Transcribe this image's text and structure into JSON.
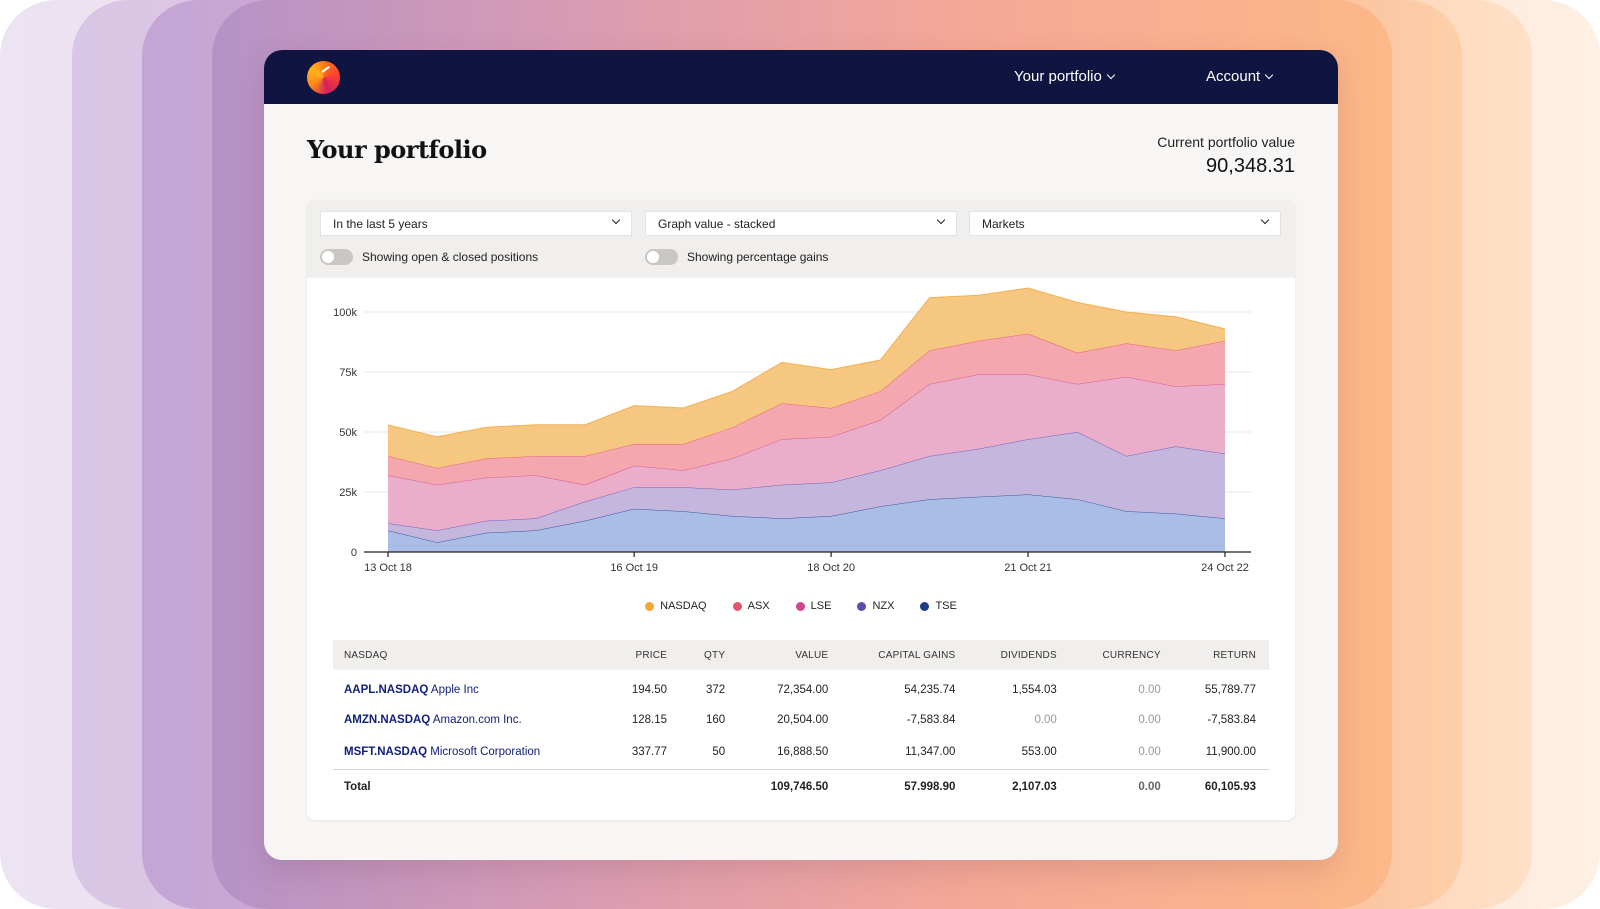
{
  "nav": {
    "portfolio_label": "Your portfolio",
    "account_label": "Account"
  },
  "page": {
    "title": "Your portfolio",
    "value_label": "Current portfolio value",
    "value": "90,348.31"
  },
  "filters": {
    "period": "In the last 5 years",
    "graph_mode": "Graph value - stacked",
    "grouping": "Markets",
    "toggle_positions_label": "Showing open & closed positions",
    "toggle_gains_label": "Showing percentage gains",
    "toggle_positions_on": false,
    "toggle_gains_on": false
  },
  "chart_data": {
    "type": "area",
    "stacked": true,
    "x": [
      "13 Oct 18",
      "",
      "",
      "",
      "",
      "16 Oct 19",
      "",
      "",
      "",
      "18 Oct 20",
      "",
      "",
      "",
      "21 Oct 21",
      "",
      "",
      "",
      "24 Oct 22"
    ],
    "x_tick_labels": [
      "13 Oct 18",
      "16 Oct 19",
      "18 Oct 20",
      "21 Oct 21",
      "24 Oct 22"
    ],
    "y_tick_labels": [
      "0",
      "25k",
      "50k",
      "75k",
      "100k"
    ],
    "ylim": [
      0,
      100000
    ],
    "series": [
      {
        "name": "TSE",
        "color": "#1e3a8a",
        "fill": "#a9bde6",
        "values": [
          9000,
          4000,
          8000,
          9000,
          13000,
          18000,
          17000,
          15000,
          14000,
          15000,
          19000,
          22000,
          23000,
          24000,
          22000,
          17000,
          16000,
          14000
        ]
      },
      {
        "name": "NZX",
        "color": "#5b4bb0",
        "fill": "#c5b6de",
        "values": [
          3000,
          5000,
          5000,
          5000,
          8000,
          9000,
          10000,
          11000,
          14000,
          14000,
          15000,
          18000,
          20000,
          23000,
          28000,
          23000,
          28000,
          27000
        ]
      },
      {
        "name": "LSE",
        "color": "#d0468a",
        "fill": "#eaaecb",
        "values": [
          20000,
          19000,
          18000,
          18000,
          7000,
          9000,
          7000,
          13000,
          19000,
          19000,
          21000,
          30000,
          31000,
          27000,
          20000,
          33000,
          25000,
          29000
        ]
      },
      {
        "name": "ASX",
        "color": "#e3566a",
        "fill": "#f4a7ae",
        "values": [
          8000,
          7000,
          8000,
          8000,
          12000,
          9000,
          11000,
          13000,
          15000,
          12000,
          12000,
          14000,
          14000,
          17000,
          13000,
          14000,
          15000,
          18000
        ]
      },
      {
        "name": "NASDAQ",
        "color": "#f3a53a",
        "fill": "#f6c780",
        "values": [
          13000,
          13000,
          13000,
          13000,
          13000,
          16000,
          15000,
          15000,
          17000,
          16000,
          13000,
          22000,
          19000,
          19000,
          21000,
          13000,
          14000,
          5000
        ]
      }
    ],
    "legend_order": [
      "NASDAQ",
      "ASX",
      "LSE",
      "NZX",
      "TSE"
    ],
    "legend_colors": {
      "NASDAQ": "#f3a53a",
      "ASX": "#e3566a",
      "LSE": "#d0468a",
      "NZX": "#5b4bb0",
      "TSE": "#1e3a8a"
    },
    "grid": true,
    "legend_position": "bottom"
  },
  "table": {
    "headers": [
      "NASDAQ",
      "PRICE",
      "QTY",
      "VALUE",
      "CAPITAL GAINS",
      "DIVIDENDS",
      "CURRENCY",
      "RETURN"
    ],
    "rows": [
      {
        "ticker": "AAPL.NASDAQ",
        "name": "Apple Inc",
        "price": "194.50",
        "qty": "372",
        "value": "72,354.00",
        "gains": "54,235.74",
        "dividends": "1,554.03",
        "currency": "0.00",
        "return": "55,789.77"
      },
      {
        "ticker": "AMZN.NASDAQ",
        "name": "Amazon.com Inc.",
        "price": "128.15",
        "qty": "160",
        "value": "20,504.00",
        "gains": "-7,583.84",
        "dividends": "0.00",
        "currency": "0.00",
        "return": "-7,583.84"
      },
      {
        "ticker": "MSFT.NASDAQ",
        "name": "Microsoft Corporation",
        "price": "337.77",
        "qty": "50",
        "value": "16,888.50",
        "gains": "11,347.00",
        "dividends": "553.00",
        "currency": "0.00",
        "return": "11,900.00"
      }
    ],
    "total": {
      "label": "Total",
      "value": "109,746.50",
      "gains": "57.998.90",
      "dividends": "2,107.03",
      "currency": "0.00",
      "return": "60,105.93"
    }
  }
}
